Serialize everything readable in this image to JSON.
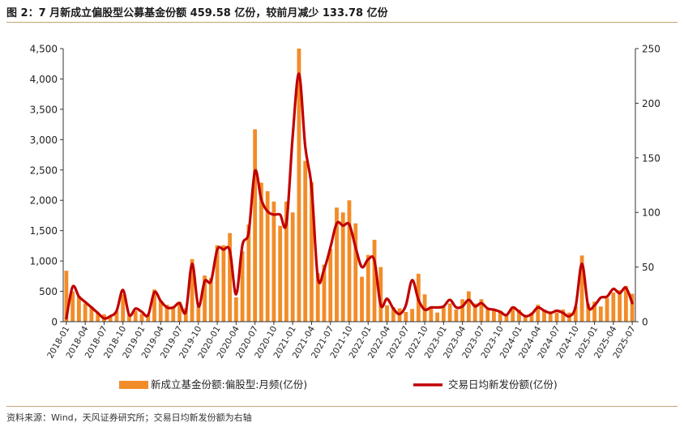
{
  "title": "图 2：7 月新成立偏股型公募基金份额 459.58 亿份，较前月减少 133.78 亿份",
  "source": "资料来源：Wind，天风证券研究所；交易日均新发份额为右轴",
  "colors": {
    "bar": "#f28c28",
    "line": "#c00000",
    "rule": "#c9a27a"
  },
  "chart_data": {
    "type": "bar",
    "title": "图 2：7 月新成立偏股型公募基金份额 459.58 亿份，较前月减少 133.78 亿份",
    "categories": [
      "2018-01",
      "2018-02",
      "2018-03",
      "2018-04",
      "2018-05",
      "2018-06",
      "2018-07",
      "2018-08",
      "2018-09",
      "2018-10",
      "2018-11",
      "2018-12",
      "2019-01",
      "2019-02",
      "2019-03",
      "2019-04",
      "2019-05",
      "2019-06",
      "2019-07",
      "2019-08",
      "2019-09",
      "2019-10",
      "2019-11",
      "2019-12",
      "2020-01",
      "2020-02",
      "2020-03",
      "2020-04",
      "2020-05",
      "2020-06",
      "2020-07",
      "2020-08",
      "2020-09",
      "2020-10",
      "2020-11",
      "2020-12",
      "2021-01",
      "2021-02",
      "2021-03",
      "2021-04",
      "2021-05",
      "2021-06",
      "2021-07",
      "2021-08",
      "2021-09",
      "2021-10",
      "2021-11",
      "2021-12",
      "2022-01",
      "2022-02",
      "2022-03",
      "2022-04",
      "2022-05",
      "2022-06",
      "2022-07",
      "2022-08",
      "2022-09",
      "2022-10",
      "2022-11",
      "2022-12",
      "2023-01",
      "2023-02",
      "2023-03",
      "2023-04",
      "2023-05",
      "2023-06",
      "2023-07",
      "2023-08",
      "2023-09",
      "2023-10",
      "2023-11",
      "2023-12",
      "2024-01",
      "2024-02",
      "2024-03",
      "2024-04",
      "2024-05",
      "2024-06",
      "2024-07",
      "2024-08",
      "2024-09",
      "2024-10",
      "2024-11",
      "2024-12",
      "2025-01",
      "2025-02",
      "2025-03",
      "2025-04",
      "2025-05",
      "2025-06",
      "2025-07"
    ],
    "xticks": [
      "2018-01",
      "2018-04",
      "2018-07",
      "2018-10",
      "2019-01",
      "2019-04",
      "2019-07",
      "2019-10",
      "2020-01",
      "2020-04",
      "2020-07",
      "2020-10",
      "2021-01",
      "2021-04",
      "2021-07",
      "2021-10",
      "2022-01",
      "2022-04",
      "2022-07",
      "2022-10",
      "2023-01",
      "2023-04",
      "2023-07",
      "2023-10",
      "2024-01",
      "2024-04",
      "2024-07",
      "2024-10",
      "2025-01",
      "2025-04",
      "2025-07"
    ],
    "series": [
      {
        "name": "新成立基金份额:偏股型:月频(亿份)",
        "axis": "left",
        "type": "bar",
        "values": [
          840,
          500,
          420,
          300,
          250,
          150,
          120,
          80,
          170,
          450,
          120,
          180,
          130,
          120,
          530,
          350,
          280,
          250,
          330,
          220,
          1030,
          250,
          760,
          720,
          1260,
          1260,
          1460,
          400,
          1160,
          1600,
          3170,
          2290,
          2150,
          1980,
          1580,
          1980,
          1800,
          4500,
          2650,
          2300,
          800,
          940,
          1200,
          1880,
          1800,
          2000,
          1620,
          740,
          1100,
          1350,
          900,
          270,
          240,
          220,
          160,
          210,
          790,
          450,
          240,
          150,
          240,
          300,
          200,
          370,
          500,
          300,
          370,
          200,
          200,
          180,
          100,
          250,
          200,
          100,
          150,
          280,
          200,
          170,
          150,
          200,
          150,
          250,
          1090,
          300,
          330,
          250,
          390,
          480,
          520,
          590,
          460
        ]
      },
      {
        "name": "交易日均新发份额(亿份)",
        "axis": "right",
        "type": "line",
        "values": [
          3,
          32,
          23,
          18,
          13,
          8,
          3,
          5,
          10,
          29,
          6,
          12,
          9,
          6,
          27,
          19,
          13,
          13,
          17,
          9,
          53,
          14,
          37,
          37,
          66,
          66,
          65,
          25,
          70,
          82,
          138,
          112,
          101,
          98,
          98,
          90,
          170,
          227,
          160,
          123,
          40,
          48,
          68,
          90,
          88,
          89,
          68,
          50,
          57,
          56,
          15,
          21,
          12,
          7,
          15,
          38,
          20,
          11,
          13,
          13,
          14,
          20,
          13,
          14,
          20,
          14,
          17,
          12,
          11,
          9,
          6,
          13,
          9,
          5,
          7,
          13,
          10,
          8,
          10,
          8,
          5,
          14,
          53,
          14,
          15,
          22,
          23,
          30,
          26,
          31,
          17
        ]
      }
    ],
    "yleft": {
      "min": 0,
      "max": 4500,
      "step": 500,
      "ticks": [
        "0",
        "500",
        "1,000",
        "1,500",
        "2,000",
        "2,500",
        "3,000",
        "3,500",
        "4,000",
        "4,500"
      ]
    },
    "yright": {
      "min": 0,
      "max": 250,
      "step": 50,
      "ticks": [
        "0",
        "50",
        "100",
        "150",
        "200",
        "250"
      ]
    },
    "grid": false,
    "legend_position": "bottom"
  }
}
